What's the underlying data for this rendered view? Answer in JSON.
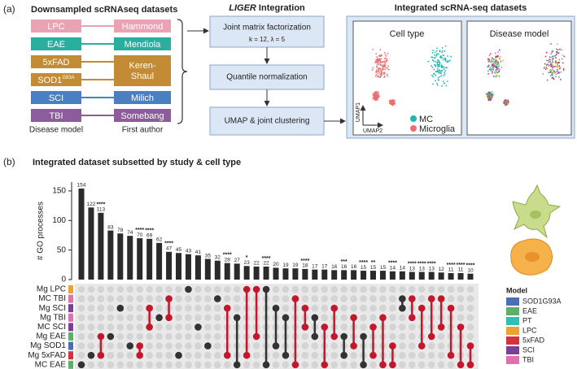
{
  "panel_a": {
    "label": "(a)",
    "title": "Downsampled scRNAseq datasets",
    "models": [
      {
        "name": "LPC",
        "color": "#e9a3b3"
      },
      {
        "name": "EAE",
        "color": "#2aae9f"
      },
      {
        "name": "5xFAD",
        "color": "#c38b34"
      },
      {
        "name": "SOD1",
        "sup": "G93A",
        "color": "#c38b34"
      },
      {
        "name": "SCI",
        "color": "#4a80c2"
      },
      {
        "name": "TBI",
        "color": "#8c5c9c"
      }
    ],
    "authors": [
      {
        "name": "Hammond",
        "color": "#e9a3b3"
      },
      {
        "name": "Mendiola",
        "color": "#2aae9f"
      },
      {
        "name": "Keren-",
        "name2": "Shaul",
        "color": "#c38b34"
      },
      {
        "name": "Milich",
        "color": "#4a80c2"
      },
      {
        "name": "Somebang",
        "color": "#8c5c9c"
      }
    ],
    "footer": [
      "Disease model",
      "First author"
    ],
    "liger_italic": "LIGER",
    "liger_rest": "Integration",
    "steps": [
      "Joint matrix factorization",
      "Quantile normalization",
      "UMAP & joint clustering"
    ],
    "params": "k = 12, λ = 5",
    "integrated_title": "Integrated scRNA-seq datasets",
    "panels": [
      "Cell type",
      "Disease model"
    ],
    "axes": [
      "UMAP1",
      "UMAP2"
    ],
    "legend": [
      {
        "name": "MC",
        "color": "#1fb5b0"
      },
      {
        "name": "Microglia",
        "color": "#ec6f6f"
      }
    ]
  },
  "chart_data": {
    "type": "upset",
    "panel_label": "(b)",
    "title": "Integrated dataset subsetted by study & cell type",
    "ylabel": "# GO processes",
    "values": [
      154,
      122,
      113,
      83,
      78,
      74,
      70,
      69,
      62,
      47,
      45,
      43,
      41,
      35,
      32,
      28,
      27,
      23,
      22,
      22,
      20,
      19,
      19,
      18,
      17,
      17,
      16,
      16,
      16,
      15,
      15,
      15,
      14,
      14,
      13,
      13,
      13,
      12,
      11,
      11,
      10
    ],
    "annotations": [
      null,
      null,
      "****",
      null,
      null,
      null,
      "****",
      "****",
      null,
      "****",
      null,
      null,
      null,
      null,
      null,
      "****",
      null,
      "*",
      null,
      "****",
      null,
      null,
      null,
      "****",
      null,
      null,
      null,
      "***",
      null,
      "****",
      "**",
      null,
      "****",
      null,
      "****",
      "****",
      "****",
      null,
      "****",
      "****",
      "****"
    ],
    "sets": [
      {
        "name": "Mg LPC",
        "color": "#f0a030"
      },
      {
        "name": "MC TBI",
        "color": "#e070b0"
      },
      {
        "name": "Mg SCI",
        "color": "#7b3f98"
      },
      {
        "name": "Mg TBI",
        "color": "#e070b0"
      },
      {
        "name": "MC SCI",
        "color": "#7b3f98"
      },
      {
        "name": "Mg EAE",
        "color": "#5bb06a"
      },
      {
        "name": "Mg SOD1",
        "color": "#4a6fb5"
      },
      {
        "name": "Mg 5xFAD",
        "color": "#d8303c"
      },
      {
        "name": "MC EAE",
        "color": "#5bb06a"
      }
    ],
    "members": [
      [
        8
      ],
      [
        7
      ],
      [
        5,
        7
      ],
      [
        5
      ],
      [
        2
      ],
      [
        6
      ],
      [
        6,
        7
      ],
      [
        2,
        4
      ],
      [
        3
      ],
      [
        1,
        3
      ],
      [
        7
      ],
      [
        0
      ],
      [
        4
      ],
      [
        6
      ],
      [
        1
      ],
      [
        2,
        7
      ],
      [
        3,
        8
      ],
      [
        0,
        7
      ],
      [
        0,
        5
      ],
      [
        0,
        8
      ],
      [
        2,
        6
      ],
      [
        3,
        7
      ],
      [
        1,
        8
      ],
      [
        2,
        4
      ],
      [
        3,
        5
      ],
      [
        4,
        8
      ],
      [
        2,
        5
      ],
      [
        5,
        7
      ],
      [
        3,
        6
      ],
      [
        5,
        8
      ],
      [
        4,
        7
      ],
      [
        3,
        8
      ],
      [
        6,
        8
      ],
      [
        1,
        2
      ],
      [
        1,
        3
      ],
      [
        2,
        6
      ],
      [
        1,
        5
      ],
      [
        1,
        4
      ],
      [
        2,
        7
      ],
      [
        4,
        8
      ],
      [
        6,
        8
      ]
    ],
    "member_colors": [
      "#333333",
      "#333333",
      "#c4172c",
      "#333333",
      "#333333",
      "#333333",
      "#c4172c",
      "#c4172c",
      "#333333",
      "#c4172c",
      "#333333",
      "#333333",
      "#333333",
      "#333333",
      "#333333",
      "#c4172c",
      "#333333",
      "#c4172c",
      "#c4172c",
      "#333333",
      "#333333",
      "#333333",
      "#c4172c",
      "#c4172c",
      "#333333",
      "#c4172c",
      "#c4172c",
      "#333333",
      "#c4172c",
      "#333333",
      "#c4172c",
      "#c4172c",
      "#c4172c",
      "#333333",
      "#c4172c",
      "#c4172c",
      "#c4172c",
      "#c4172c",
      "#c4172c",
      "#c4172c",
      "#c4172c"
    ],
    "bar_color": "#2b2b2b",
    "ylim": [
      0,
      165
    ],
    "yticks": [
      0,
      50,
      100,
      150
    ],
    "legend_title": "Model",
    "legend": [
      {
        "name": "SOD1G93A",
        "color": "#4a6fb5"
      },
      {
        "name": "EAE",
        "color": "#5bb06a"
      },
      {
        "name": "PT",
        "color": "#2fbfb3"
      },
      {
        "name": "LPC",
        "color": "#f0a030"
      },
      {
        "name": "5xFAD",
        "color": "#d8303c"
      },
      {
        "name": "SCI",
        "color": "#7b3f98"
      },
      {
        "name": "TBI",
        "color": "#e070b0"
      }
    ]
  }
}
